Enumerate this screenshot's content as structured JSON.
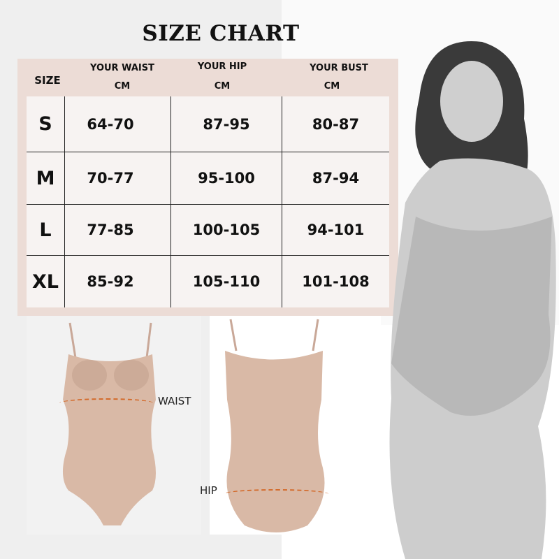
{
  "title": "SIZE CHART",
  "headers": {
    "size": "SIZE",
    "waist": "YOUR WAIST",
    "hip": "YOUR HIP",
    "bust": "YOUR BUST",
    "unit": "CM"
  },
  "rows": [
    {
      "size": "S",
      "waist": "64-70",
      "hip": "87-95",
      "bust": "80-87"
    },
    {
      "size": "M",
      "waist": "70-77",
      "hip": "95-100",
      "bust": "87-94"
    },
    {
      "size": "L",
      "waist": "77-85",
      "hip": "100-105",
      "bust": "94-101"
    },
    {
      "size": "XL",
      "waist": "85-92",
      "hip": "105-110",
      "bust": "101-108"
    }
  ],
  "labels": {
    "waist": "WAIST",
    "hip": "HIP"
  },
  "colors": {
    "chart_bg": "#ecdcd6",
    "cell_bg": "#f7f3f2",
    "garment": "#d9b9a6",
    "measure_line": "#d36a2a"
  }
}
